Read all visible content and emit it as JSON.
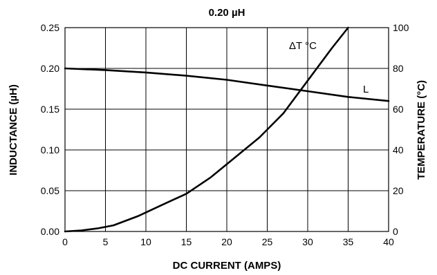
{
  "chart_data": {
    "type": "line",
    "title": "0.20 µH",
    "xlabel": "DC CURRENT (AMPS)",
    "ylabel_left": "INDUCTANCE (µH)",
    "ylabel_right": "TEMPERATURE (°C)",
    "xlim": [
      0,
      40
    ],
    "ylim_left": [
      0,
      0.25
    ],
    "ylim_right": [
      0,
      100
    ],
    "x_ticks": [
      "0",
      "5",
      "10",
      "15",
      "20",
      "25",
      "30",
      "35",
      "40"
    ],
    "y_left_ticks": [
      "0.00",
      "0.05",
      "0.10",
      "0.15",
      "0.20",
      "0.25"
    ],
    "y_right_ticks": [
      "0",
      "20",
      "40",
      "60",
      "80",
      "100"
    ],
    "grid": true,
    "series": [
      {
        "name": "L",
        "axis": "left",
        "x": [
          0,
          5,
          10,
          15,
          20,
          25,
          30,
          35,
          40
        ],
        "y": [
          0.2,
          0.198,
          0.195,
          0.191,
          0.186,
          0.179,
          0.172,
          0.165,
          0.16
        ]
      },
      {
        "name": "ΔT °C",
        "axis": "right",
        "x": [
          0,
          2,
          4,
          6,
          9,
          12,
          15,
          18,
          20,
          24,
          27,
          30,
          33,
          35
        ],
        "y": [
          0,
          0.5,
          1.5,
          3,
          7.5,
          13,
          18.5,
          26.5,
          33,
          46,
          58,
          74,
          90,
          100
        ]
      }
    ]
  }
}
